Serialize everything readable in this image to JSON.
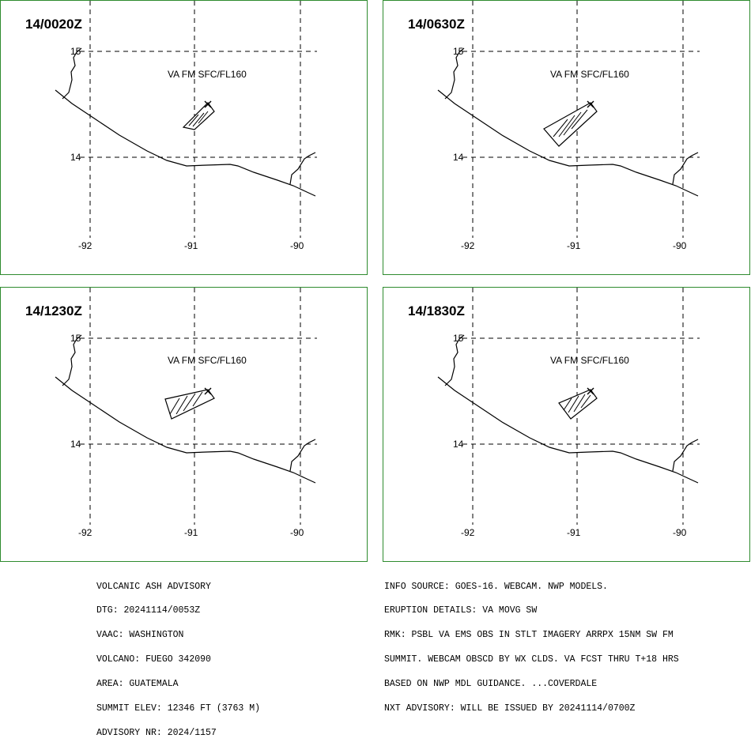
{
  "panels": [
    {
      "time": "14/0020Z",
      "label": "VA FM SFC/FL160"
    },
    {
      "time": "14/0630Z",
      "label": "VA FM SFC/FL160"
    },
    {
      "time": "14/1230Z",
      "label": "VA FM SFC/FL160"
    },
    {
      "time": "14/1830Z",
      "label": "VA FM SFC/FL160"
    }
  ],
  "lat_labels": [
    "15",
    "14"
  ],
  "lon_labels": [
    "-92",
    "-91",
    "-90"
  ],
  "advisory_left": [
    "VOLCANIC ASH ADVISORY",
    "DTG: 20241114/0053Z",
    "VAAC: WASHINGTON",
    "VOLCANO: FUEGO 342090",
    "AREA: GUATEMALA",
    "SUMMIT ELEV: 12346 FT (3763 M)",
    "ADVISORY NR: 2024/1157"
  ],
  "advisory_right": [
    "INFO SOURCE: GOES-16. WEBCAM. NWP MODELS.",
    "ERUPTION DETAILS: VA MOVG SW",
    "RMK: PSBL VA EMS OBS IN STLT IMAGERY ARRPX 15NM SW FM",
    "SUMMIT. WEBCAM OBSCD BY WX CLDS. VA FCST THRU T+18 HRS",
    "BASED ON NWP MDL GUIDANCE. ...COVERDALE",
    "NXT ADVISORY: WILL BE ISSUED BY 20241114/0700Z"
  ]
}
